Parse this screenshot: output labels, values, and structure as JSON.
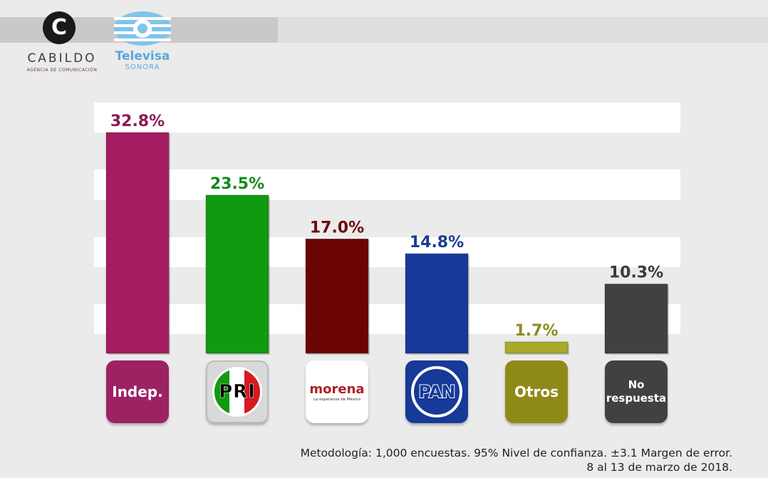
{
  "logos": {
    "cabildo": {
      "symbol": "C",
      "name": "CABILDO",
      "tagline": "AGENCIA DE COMUNICACIÓN"
    },
    "televisa": {
      "name": "Televisa",
      "sub": "SONORA"
    }
  },
  "chart_data": {
    "type": "bar",
    "categories": [
      "Indep.",
      "PRI",
      "morena",
      "PAN",
      "Otros",
      "No respuesta"
    ],
    "values": [
      32.8,
      23.5,
      17.0,
      14.8,
      1.7,
      10.3
    ],
    "value_labels": [
      "32.8%",
      "23.5%",
      "17.0%",
      "14.8%",
      "1.7%",
      "10.3%"
    ],
    "colors": [
      "#a51c60",
      "#0f9a0f",
      "#6b0404",
      "#173997",
      "#a8a928",
      "#414141"
    ],
    "label_colors": [
      "#8e1a55",
      "#168a16",
      "#6e0a0a",
      "#1c3a90",
      "#8c8c20",
      "#3a3a3a"
    ],
    "ylim": [
      0,
      33
    ],
    "grid": "alternating bands",
    "title": "",
    "xlabel": "",
    "ylabel": ""
  },
  "badges": [
    {
      "label": "Indep.",
      "color": "#9c2264"
    },
    {
      "label": "PRI",
      "logo": "PRI",
      "colors": [
        "#0f9a0f",
        "#ffffff",
        "#d71920"
      ]
    },
    {
      "label": "morena",
      "sub": "La esperanza de México",
      "color": "#b01f24"
    },
    {
      "label": "PAN",
      "color": "#173997"
    },
    {
      "label": "Otros",
      "color": "#8f8a18"
    },
    {
      "label": "No respuesta",
      "color": "#414141"
    }
  ],
  "footnote": {
    "line1": "Metodología: 1,000 encuestas. 95% Nivel de confianza. ±3.1 Margen de error.",
    "line2": "8 al 13 de marzo de 2018."
  }
}
